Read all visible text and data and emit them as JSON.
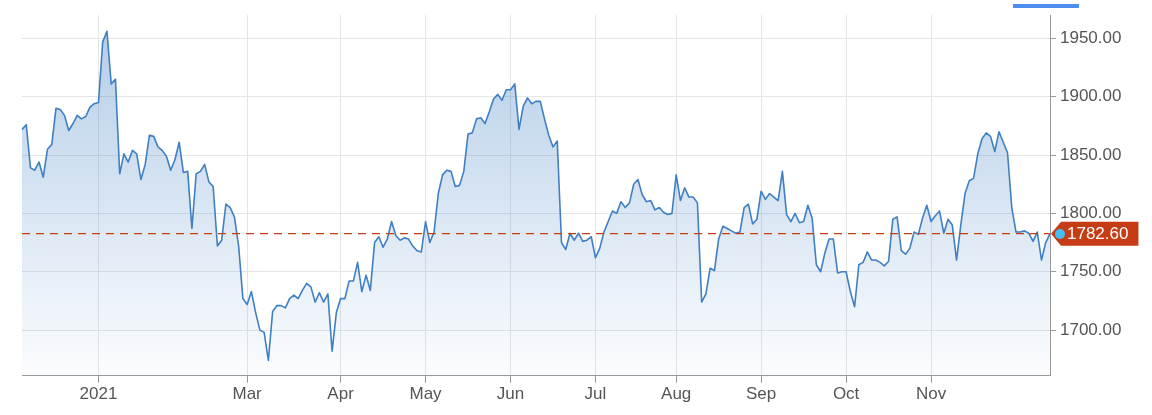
{
  "chart_data": {
    "type": "area",
    "categories": [
      null,
      null,
      null,
      null,
      null,
      null,
      null,
      null,
      null,
      null,
      null,
      null,
      null,
      null,
      null,
      null,
      null,
      null,
      "2021",
      null,
      null,
      null,
      null,
      null,
      null,
      null,
      null,
      null,
      null,
      null,
      null,
      null,
      null,
      null,
      null,
      null,
      null,
      null,
      null,
      null,
      null,
      null,
      null,
      null,
      null,
      null,
      null,
      null,
      null,
      null,
      null,
      null,
      null,
      "Mar",
      null,
      null,
      null,
      null,
      null,
      null,
      null,
      null,
      null,
      null,
      null,
      null,
      null,
      null,
      null,
      null,
      null,
      null,
      null,
      null,
      null,
      "Apr",
      null,
      null,
      null,
      null,
      null,
      null,
      null,
      null,
      null,
      null,
      null,
      null,
      null,
      null,
      null,
      null,
      null,
      null,
      null,
      "May",
      null,
      null,
      null,
      null,
      null,
      null,
      null,
      null,
      null,
      null,
      null,
      null,
      null,
      null,
      null,
      null,
      null,
      null,
      null,
      "Jun",
      null,
      null,
      null,
      null,
      null,
      null,
      null,
      null,
      null,
      null,
      null,
      null,
      null,
      null,
      null,
      null,
      null,
      null,
      null,
      "Jul",
      null,
      null,
      null,
      null,
      null,
      null,
      null,
      null,
      null,
      null,
      null,
      null,
      null,
      null,
      null,
      null,
      null,
      null,
      "Aug",
      null,
      null,
      null,
      null,
      null,
      null,
      null,
      null,
      null,
      null,
      null,
      null,
      null,
      null,
      null,
      null,
      null,
      null,
      null,
      "Sep",
      null,
      null,
      null,
      null,
      null,
      null,
      null,
      null,
      null,
      null,
      null,
      null,
      null,
      null,
      null,
      null,
      null,
      null,
      null,
      "Oct",
      null,
      null,
      null,
      null,
      null,
      null,
      null,
      null,
      null,
      null,
      null,
      null,
      null,
      null,
      null,
      null,
      null,
      null,
      null,
      "Nov",
      null,
      null,
      null,
      null,
      null,
      null,
      null,
      null,
      null,
      null,
      null,
      null,
      null,
      null,
      null,
      null,
      null,
      null,
      null,
      null,
      null,
      null,
      null,
      null,
      null,
      null,
      null,
      null
    ],
    "series": [
      {
        "color": "#3f7fc3",
        "values": [
          1872,
          1876,
          1839,
          1837,
          1844,
          1831,
          1855,
          1859,
          1890,
          1889,
          1884,
          1871,
          1877,
          1884,
          1881,
          1883,
          1891,
          1894,
          1895,
          1947,
          1956,
          1911,
          1915,
          1834,
          1851,
          1844,
          1854,
          1851,
          1829,
          1842,
          1867,
          1866,
          1857,
          1854,
          1849,
          1837,
          1846,
          1861,
          1835,
          1836,
          1787,
          1834,
          1836,
          1842,
          1827,
          1823,
          1772,
          1777,
          1808,
          1805,
          1797,
          1772,
          1727,
          1722,
          1733,
          1715,
          1700,
          1698,
          1674,
          1716,
          1721,
          1721,
          1719,
          1727,
          1730,
          1727,
          1734,
          1740,
          1737,
          1724,
          1732,
          1724,
          1731,
          1682,
          1715,
          1727,
          1727,
          1742,
          1742,
          1758,
          1733,
          1747,
          1734,
          1775,
          1780,
          1771,
          1778,
          1793,
          1781,
          1777,
          1779,
          1778,
          1772,
          1768,
          1767,
          1793,
          1775,
          1784,
          1817,
          1833,
          1837,
          1836,
          1823,
          1824,
          1836,
          1868,
          1869,
          1881,
          1882,
          1877,
          1887,
          1898,
          1902,
          1897,
          1906,
          1906,
          1911,
          1872,
          1892,
          1899,
          1894,
          1896,
          1896,
          1881,
          1867,
          1857,
          1862,
          1775,
          1769,
          1783,
          1777,
          1783,
          1776,
          1777,
          1780,
          1762,
          1770,
          1784,
          1793,
          1802,
          1800,
          1810,
          1805,
          1809,
          1825,
          1829,
          1816,
          1810,
          1811,
          1803,
          1805,
          1801,
          1799,
          1800,
          1833,
          1811,
          1822,
          1814,
          1814,
          1809,
          1724,
          1731,
          1753,
          1751,
          1778,
          1789,
          1787,
          1785,
          1783,
          1784,
          1805,
          1808,
          1791,
          1795,
          1819,
          1812,
          1817,
          1814,
          1811,
          1836,
          1799,
          1793,
          1800,
          1792,
          1793,
          1807,
          1796,
          1756,
          1750,
          1766,
          1778,
          1778,
          1749,
          1750,
          1750,
          1733,
          1720,
          1756,
          1758,
          1767,
          1760,
          1760,
          1758,
          1755,
          1759,
          1795,
          1797,
          1768,
          1765,
          1770,
          1784,
          1782,
          1796,
          1807,
          1793,
          1798,
          1802,
          1783,
          1795,
          1790,
          1760,
          1790,
          1817,
          1828,
          1830,
          1851,
          1864,
          1869,
          1866,
          1853,
          1870,
          1861,
          1852,
          1805,
          1784,
          1784,
          1785,
          1783,
          1776,
          1784,
          1760,
          1775,
          1782.6
        ]
      }
    ],
    "ylim": [
      1661,
      1970
    ],
    "yticks": [
      {
        "value": 1700,
        "label": "1700.00"
      },
      {
        "value": 1750,
        "label": "1750.00"
      },
      {
        "value": 1800,
        "label": "1800.00"
      },
      {
        "value": 1850,
        "label": "1850.00"
      },
      {
        "value": 1900,
        "label": "1900.00"
      },
      {
        "value": 1950,
        "label": "1950.00"
      }
    ],
    "grid": true,
    "marker": "none",
    "ref_lines": [
      {
        "axis": "y",
        "value": 1782.6,
        "label": "1782.60",
        "color": "#c63d15",
        "line_style": "dashed"
      }
    ]
  }
}
